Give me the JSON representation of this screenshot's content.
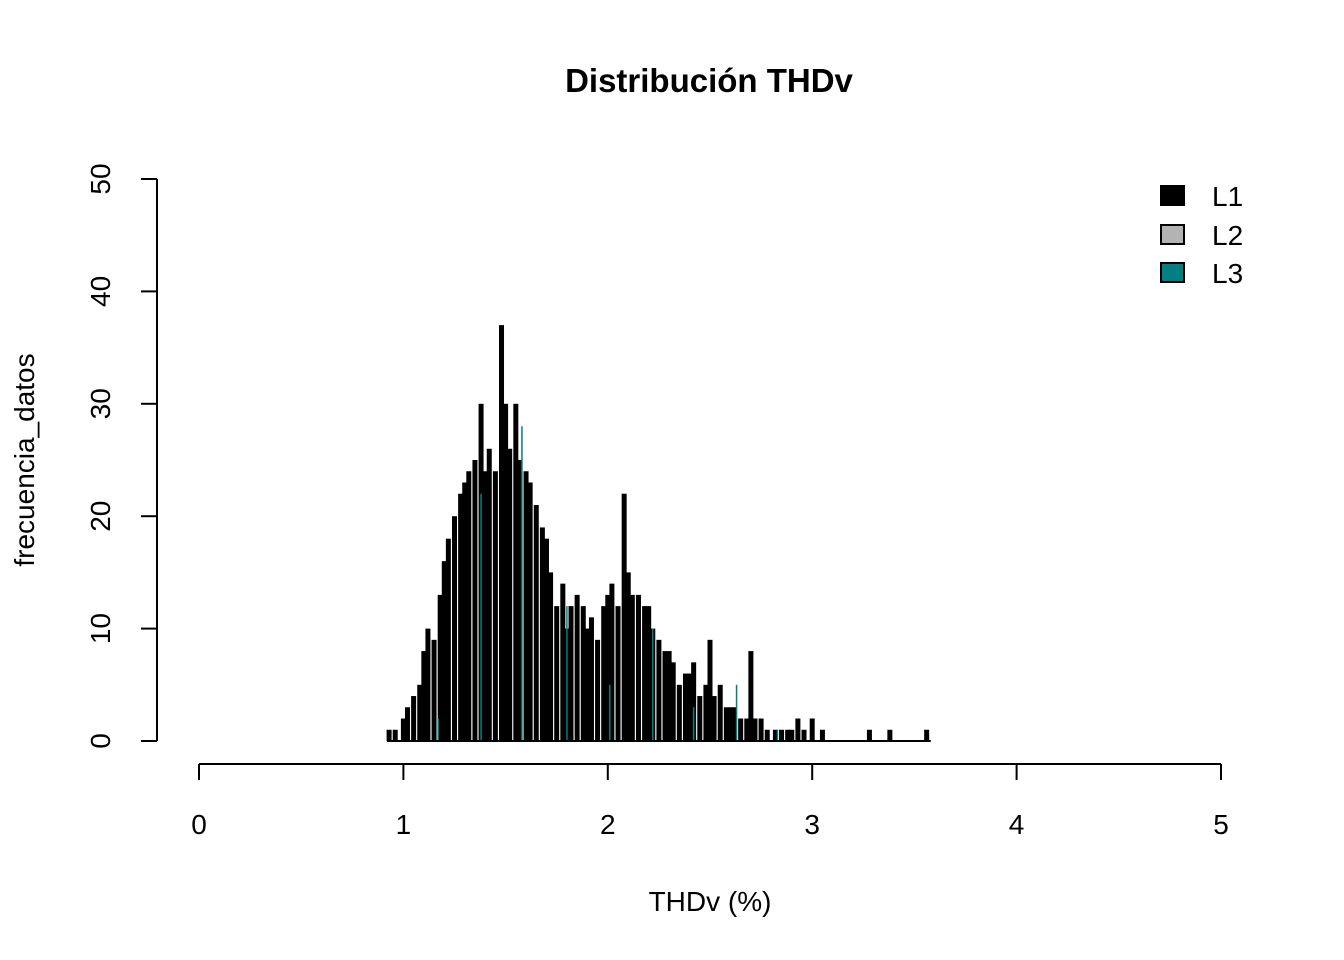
{
  "chart_data": {
    "type": "bar",
    "title": "Distribución THDv",
    "xlabel": "THDv (%)",
    "ylabel": "frecuencia_datos",
    "xlim": [
      0,
      5
    ],
    "ylim": [
      0,
      50
    ],
    "x_ticks": [
      "0",
      "1",
      "2",
      "3",
      "4",
      "5"
    ],
    "y_ticks": [
      "0",
      "10",
      "20",
      "30",
      "40",
      "50"
    ],
    "grid": false,
    "legend_position": "top-right",
    "series": [
      {
        "name": "L1",
        "color": "#000000",
        "x": [
          0.93,
          0.96,
          1.0,
          1.02,
          1.05,
          1.08,
          1.1,
          1.12,
          1.15,
          1.18,
          1.2,
          1.22,
          1.25,
          1.28,
          1.3,
          1.32,
          1.35,
          1.38,
          1.4,
          1.42,
          1.45,
          1.48,
          1.5,
          1.52,
          1.55,
          1.57,
          1.6,
          1.62,
          1.65,
          1.68,
          1.7,
          1.72,
          1.75,
          1.78,
          1.8,
          1.82,
          1.85,
          1.88,
          1.9,
          1.92,
          1.95,
          1.98,
          2.0,
          2.02,
          2.05,
          2.08,
          2.1,
          2.12,
          2.15,
          2.18,
          2.2,
          2.22,
          2.25,
          2.28,
          2.3,
          2.32,
          2.35,
          2.38,
          2.4,
          2.42,
          2.45,
          2.48,
          2.5,
          2.52,
          2.55,
          2.58,
          2.6,
          2.62,
          2.65,
          2.68,
          2.7,
          2.72,
          2.75,
          2.78,
          2.8,
          2.82,
          2.85,
          2.88,
          2.9,
          2.93,
          2.96,
          3.0,
          3.05,
          3.28,
          3.38,
          3.56
        ],
        "values": [
          1,
          1,
          2,
          3,
          4,
          5,
          8,
          10,
          9,
          13,
          16,
          18,
          20,
          22,
          23,
          24,
          25,
          30,
          24,
          26,
          24,
          37,
          30,
          26,
          30,
          25,
          24,
          23,
          21,
          19,
          18,
          15,
          12,
          14,
          10,
          12,
          13,
          12,
          10,
          11,
          9,
          12,
          13,
          14,
          12,
          22,
          15,
          13,
          13,
          12,
          12,
          10,
          9,
          8,
          8,
          7,
          5,
          6,
          6,
          7,
          4,
          5,
          9,
          4,
          5,
          3,
          3,
          3,
          2,
          2,
          8,
          2,
          2,
          1,
          0,
          1,
          1,
          1,
          1,
          2,
          1,
          2,
          1,
          1,
          1,
          1
        ],
        "gap_values_note": ""
      },
      {
        "name": "L2",
        "color": "#b3b3b3",
        "x": [],
        "values": []
      },
      {
        "name": "L3",
        "color": "#008080",
        "x": [
          1.17,
          1.38,
          1.58,
          1.8,
          2.01,
          2.22,
          2.42,
          2.63,
          2.83
        ],
        "values": [
          2,
          22,
          28,
          12,
          5,
          10,
          3,
          5,
          1
        ]
      }
    ]
  }
}
